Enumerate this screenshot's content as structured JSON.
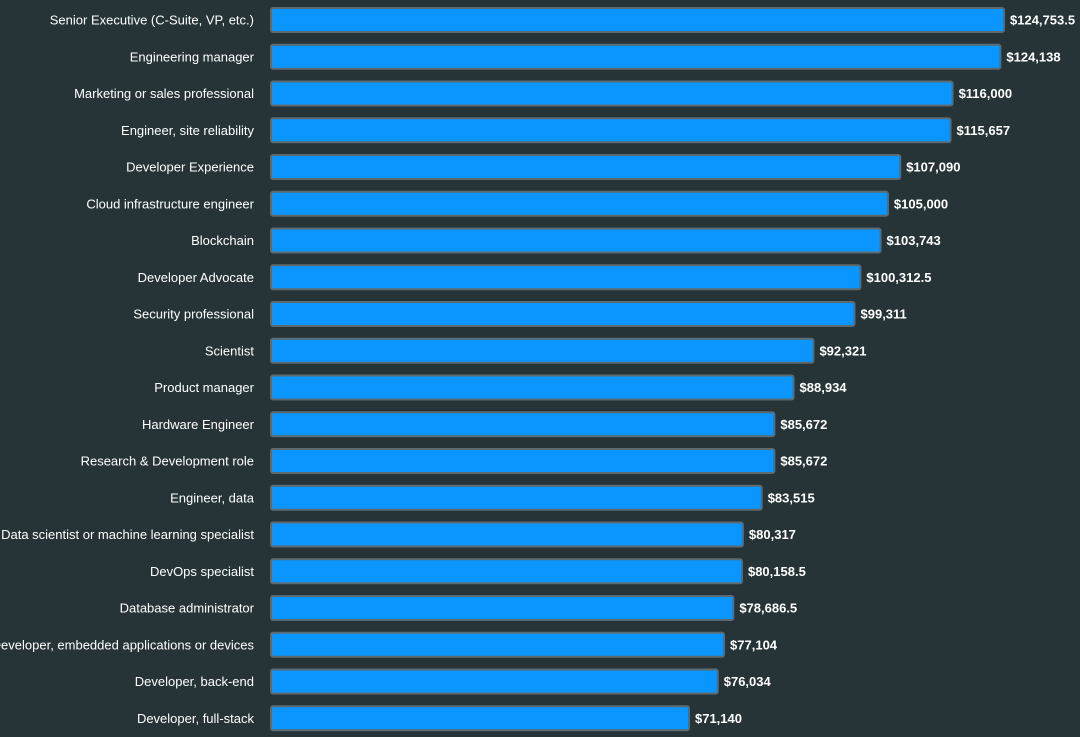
{
  "colors": {
    "background": "#263438",
    "bar": "#0a95ff",
    "bar_border": "#5d6b70",
    "text": "#ffffff"
  },
  "chart_data": {
    "type": "bar",
    "orientation": "horizontal",
    "title": "",
    "xlabel": "",
    "ylabel": "",
    "grid": false,
    "legend": "none",
    "xlim": [
      0,
      124753.5
    ],
    "categories": [
      "Senior Executive (C-Suite, VP, etc.)",
      "Engineering manager",
      "Marketing or sales professional",
      "Engineer, site reliability",
      "Developer Experience",
      "Cloud infrastructure engineer",
      "Blockchain",
      "Developer Advocate",
      "Security professional",
      "Scientist",
      "Product manager",
      "Hardware Engineer",
      "Research & Development role",
      "Engineer, data",
      "Data scientist or machine learning specialist",
      "DevOps specialist",
      "Database administrator",
      "Developer, embedded applications or devices",
      "Developer, back-end",
      "Developer, full-stack"
    ],
    "values": [
      124753.5,
      124138,
      116000,
      115657,
      107090,
      105000,
      103743,
      100312.5,
      99311,
      92321,
      88934,
      85672,
      85672,
      83515,
      80317,
      80158.5,
      78686.5,
      77104,
      76034,
      71140
    ],
    "value_labels": [
      "$124,753.5",
      "$124,138",
      "$116,000",
      "$115,657",
      "$107,090",
      "$105,000",
      "$103,743",
      "$100,312.5",
      "$99,311",
      "$92,321",
      "$88,934",
      "$85,672",
      "$85,672",
      "$83,515",
      "$80,317",
      "$80,158.5",
      "$78,686.5",
      "$77,104",
      "$76,034",
      "$71,140"
    ]
  }
}
